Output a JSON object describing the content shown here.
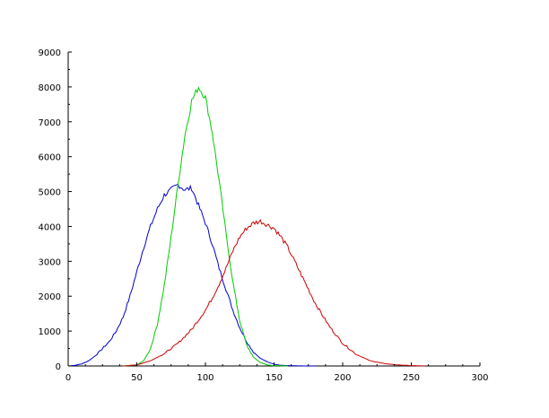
{
  "chart_data": {
    "type": "line",
    "title": "",
    "xlabel": "",
    "ylabel": "",
    "xlim": [
      0,
      300
    ],
    "ylim": [
      0,
      9000
    ],
    "grid": false,
    "legend": "none",
    "x_ticks": [
      0,
      50,
      100,
      150,
      200,
      250,
      300
    ],
    "y_ticks": [
      0,
      1000,
      2000,
      3000,
      4000,
      5000,
      6000,
      7000,
      8000,
      9000
    ],
    "x_tick_labels": [
      "0",
      "50",
      "100",
      "150",
      "200",
      "250",
      "300"
    ],
    "y_tick_labels": [
      "0",
      "1000",
      "2000",
      "3000",
      "4000",
      "5000",
      "6000",
      "7000",
      "8000",
      "9000"
    ],
    "series": [
      {
        "color": "#0000cc",
        "x": [
          0,
          5,
          10,
          15,
          20,
          25,
          30,
          35,
          40,
          45,
          50,
          55,
          60,
          65,
          70,
          75,
          80,
          85,
          90,
          95,
          100,
          105,
          110,
          115,
          120,
          125,
          130,
          135,
          140,
          145,
          150,
          155,
          160,
          170,
          180
        ],
        "y": [
          0,
          20,
          60,
          150,
          300,
          500,
          700,
          1000,
          1400,
          2000,
          2700,
          3400,
          4000,
          4500,
          4900,
          5050,
          5200,
          5050,
          5100,
          4600,
          4100,
          3500,
          2800,
          2200,
          1600,
          1100,
          700,
          400,
          220,
          120,
          50,
          20,
          10,
          0,
          0
        ]
      },
      {
        "color": "#00cc00",
        "x": [
          40,
          50,
          55,
          60,
          65,
          70,
          75,
          80,
          85,
          90,
          95,
          100,
          105,
          110,
          115,
          120,
          125,
          130,
          135,
          140,
          145,
          150,
          160
        ],
        "y": [
          0,
          30,
          150,
          500,
          1200,
          2300,
          3700,
          5200,
          6600,
          7600,
          8000,
          7700,
          6700,
          5300,
          3800,
          2400,
          1300,
          600,
          250,
          100,
          30,
          10,
          0
        ]
      },
      {
        "color": "#cc0000",
        "x": [
          40,
          50,
          60,
          70,
          80,
          90,
          100,
          105,
          110,
          115,
          120,
          125,
          130,
          135,
          140,
          145,
          150,
          155,
          160,
          165,
          170,
          175,
          180,
          190,
          200,
          210,
          220,
          230,
          240,
          250,
          260
        ],
        "y": [
          0,
          30,
          150,
          350,
          650,
          1050,
          1600,
          1950,
          2350,
          2800,
          3300,
          3700,
          3950,
          4100,
          4150,
          4050,
          3950,
          3700,
          3400,
          3000,
          2600,
          2200,
          1800,
          1150,
          650,
          330,
          150,
          70,
          30,
          10,
          0
        ]
      }
    ]
  }
}
